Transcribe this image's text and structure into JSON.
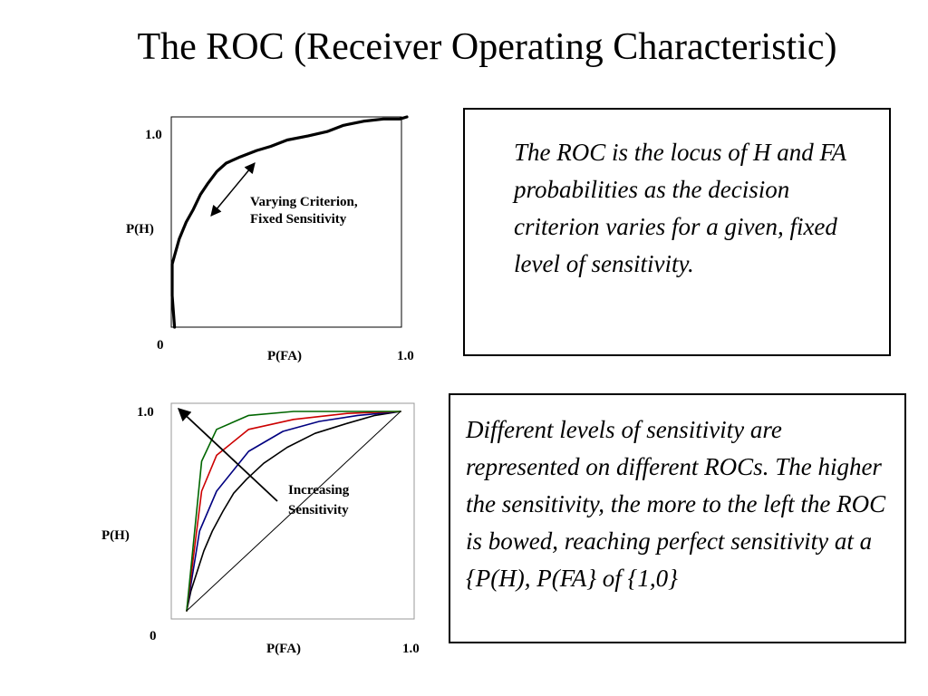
{
  "title": "The ROC (Receiver Operating Characteristic)",
  "text_boxes": {
    "locus": "The ROC is the locus of H and FA probabilities as the decision criterion varies for a given, fixed level of sensitivity.",
    "sensitivity": "Different levels of sensitivity are represented on different ROCs. The higher the sensitivity, the more to the left the ROC is bowed, reaching perfect sensitivity at a {P(H), P(FA} of {1,0}"
  },
  "chart_data": [
    {
      "type": "line",
      "title": "",
      "xlabel": "P(FA)",
      "ylabel": "P(H)",
      "x_ticks": [
        "0",
        "1.0"
      ],
      "y_ticks": [
        "0",
        "1.0"
      ],
      "xlim": [
        0,
        1
      ],
      "ylim": [
        0,
        1
      ],
      "grid": false,
      "annotation": "Varying Criterion, Fixed Sensitivity",
      "series": [
        {
          "color": "#000000",
          "points": [
            [
              0.01,
              0.0
            ],
            [
              0.0,
              0.15
            ],
            [
              0.0,
              0.3
            ],
            [
              0.01,
              0.34
            ],
            [
              0.03,
              0.42
            ],
            [
              0.06,
              0.5
            ],
            [
              0.09,
              0.56
            ],
            [
              0.12,
              0.63
            ],
            [
              0.15,
              0.68
            ],
            [
              0.19,
              0.74
            ],
            [
              0.23,
              0.78
            ],
            [
              0.29,
              0.81
            ],
            [
              0.36,
              0.84
            ],
            [
              0.42,
              0.86
            ],
            [
              0.49,
              0.89
            ],
            [
              0.58,
              0.91
            ],
            [
              0.66,
              0.93
            ],
            [
              0.73,
              0.96
            ],
            [
              0.82,
              0.98
            ],
            [
              0.9,
              0.99
            ],
            [
              0.97,
              0.99
            ],
            [
              1.0,
              1.0
            ]
          ]
        }
      ]
    },
    {
      "type": "line",
      "title": "",
      "xlabel": "P(FA)",
      "ylabel": "P(H)",
      "x_ticks": [
        "0",
        "1.0"
      ],
      "y_ticks": [
        "0",
        "1.0"
      ],
      "xlim": [
        0,
        1
      ],
      "ylim": [
        0,
        1
      ],
      "grid": false,
      "annotation": "Increasing Sensitivity",
      "series": [
        {
          "color": "#000000",
          "points": [
            [
              0,
              0
            ],
            [
              0.02,
              0.1
            ],
            [
              0.05,
              0.2
            ],
            [
              0.08,
              0.3
            ],
            [
              0.12,
              0.4
            ],
            [
              0.17,
              0.5
            ],
            [
              0.22,
              0.59
            ],
            [
              0.28,
              0.66
            ],
            [
              0.36,
              0.74
            ],
            [
              0.47,
              0.82
            ],
            [
              0.6,
              0.89
            ],
            [
              0.75,
              0.94
            ],
            [
              0.88,
              0.98
            ],
            [
              1,
              1
            ]
          ]
        },
        {
          "color": "#000080",
          "points": [
            [
              0,
              0
            ],
            [
              0.06,
              0.4
            ],
            [
              0.14,
              0.6
            ],
            [
              0.29,
              0.8
            ],
            [
              0.45,
              0.9
            ],
            [
              0.62,
              0.95
            ],
            [
              0.8,
              0.98
            ],
            [
              1,
              1
            ]
          ]
        },
        {
          "color": "#cc0000",
          "points": [
            [
              0,
              0
            ],
            [
              0.07,
              0.6
            ],
            [
              0.14,
              0.78
            ],
            [
              0.29,
              0.91
            ],
            [
              0.5,
              0.96
            ],
            [
              0.75,
              0.99
            ],
            [
              1,
              1
            ]
          ]
        },
        {
          "color": "#006600",
          "points": [
            [
              0,
              0
            ],
            [
              0.07,
              0.75
            ],
            [
              0.14,
              0.91
            ],
            [
              0.29,
              0.98
            ],
            [
              0.5,
              1.0
            ],
            [
              1,
              1
            ]
          ]
        },
        {
          "color": "#000000",
          "points": [
            [
              0,
              0
            ],
            [
              1,
              1
            ]
          ]
        }
      ]
    }
  ]
}
